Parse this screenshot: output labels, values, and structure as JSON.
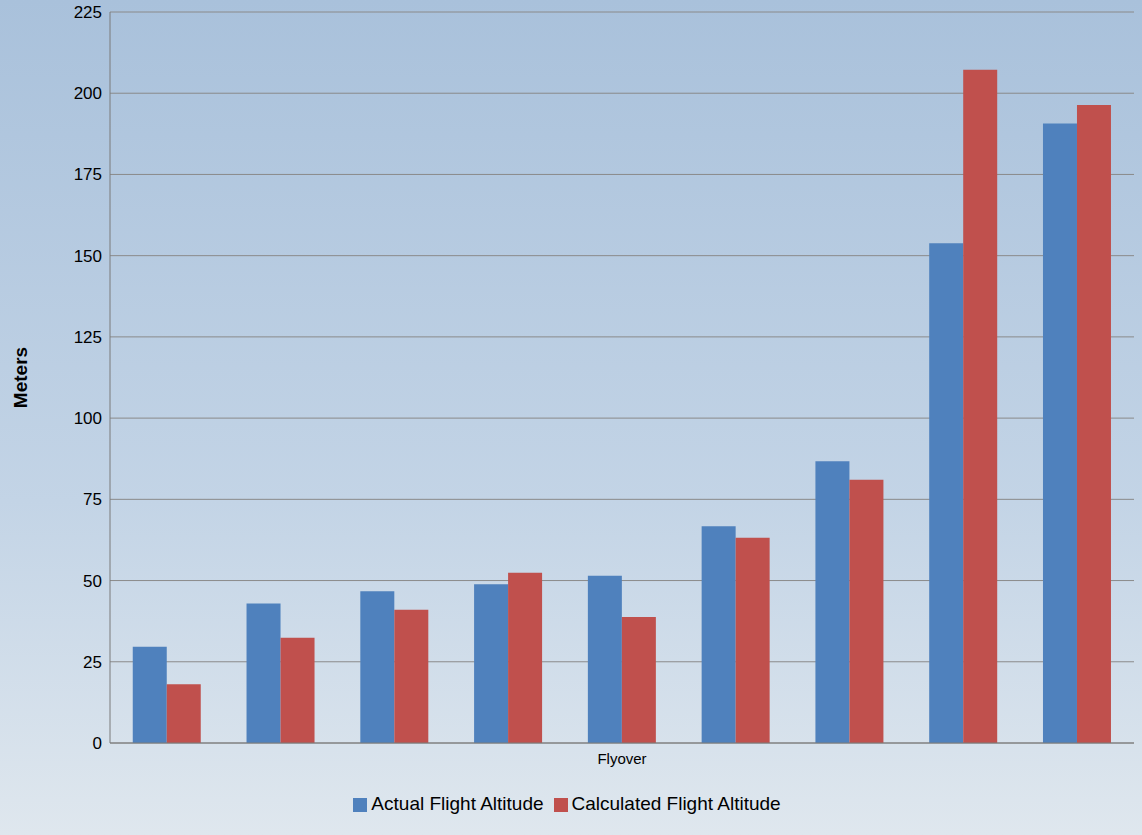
{
  "chart_data": {
    "type": "bar",
    "x_label": "Flyover",
    "y_label": "Meters",
    "categories": [
      null,
      null,
      null,
      null,
      null,
      null,
      null,
      null,
      null
    ],
    "series": [
      {
        "name": "Actual Flight Altitude",
        "color": "#4f81bd",
        "values": [
          29.6,
          42.9,
          46.7,
          48.9,
          51.5,
          66.7,
          86.7,
          153.8,
          190.7
        ]
      },
      {
        "name": "Calculated Flight Altitude",
        "color": "#c0504d",
        "values": [
          18.1,
          32.4,
          41,
          52.4,
          38.8,
          63.2,
          81,
          207.2,
          196.4
        ]
      }
    ],
    "ylim": [
      0,
      225
    ],
    "yticks": [
      0,
      25,
      50,
      75,
      100,
      125,
      150,
      175,
      200,
      225
    ],
    "grid": true,
    "legend": "bottom"
  }
}
